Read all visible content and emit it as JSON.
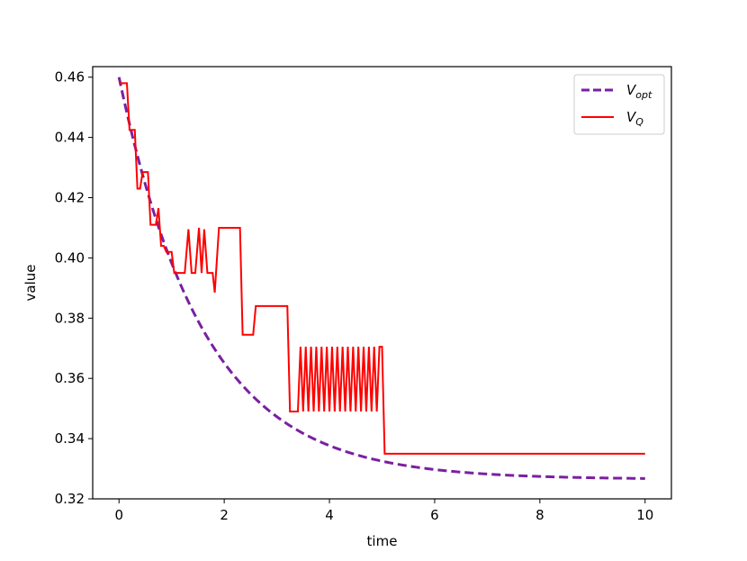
{
  "chart_data": {
    "type": "line",
    "xlabel": "time",
    "ylabel": "value",
    "xlim": [
      -0.5,
      10.5
    ],
    "ylim": [
      0.32,
      0.4635
    ],
    "x_ticks": [
      {
        "value": 0,
        "label": "0"
      },
      {
        "value": 2,
        "label": "2"
      },
      {
        "value": 4,
        "label": "4"
      },
      {
        "value": 6,
        "label": "6"
      },
      {
        "value": 8,
        "label": "8"
      },
      {
        "value": 10,
        "label": "10"
      }
    ],
    "y_ticks": [
      {
        "value": 0.32,
        "label": "0.32"
      },
      {
        "value": 0.34,
        "label": "0.34"
      },
      {
        "value": 0.36,
        "label": "0.36"
      },
      {
        "value": 0.38,
        "label": "0.38"
      },
      {
        "value": 0.4,
        "label": "0.40"
      },
      {
        "value": 0.42,
        "label": "0.42"
      },
      {
        "value": 0.44,
        "label": "0.44"
      },
      {
        "value": 0.46,
        "label": "0.46"
      }
    ],
    "grid": false,
    "legend_position": "top-right",
    "series": [
      {
        "name_main": "V",
        "name_sub": "opt",
        "color": "#7b1fa2",
        "style": "dashed",
        "exp_decay": {
          "start": 0.46,
          "asymptote": 0.3265,
          "rate": 0.62,
          "x_start": 0,
          "x_end": 10
        }
      },
      {
        "name_main": "V",
        "name_sub": "Q",
        "color": "#ff0000",
        "style": "solid",
        "points": [
          [
            0.0,
            0.458
          ],
          [
            0.15,
            0.458
          ],
          [
            0.2,
            0.4425
          ],
          [
            0.3,
            0.4425
          ],
          [
            0.35,
            0.423
          ],
          [
            0.4,
            0.423
          ],
          [
            0.45,
            0.4285
          ],
          [
            0.55,
            0.4285
          ],
          [
            0.6,
            0.411
          ],
          [
            0.7,
            0.411
          ],
          [
            0.75,
            0.4165
          ],
          [
            0.8,
            0.404
          ],
          [
            0.85,
            0.404
          ],
          [
            0.9,
            0.402
          ],
          [
            1.0,
            0.402
          ],
          [
            1.05,
            0.395
          ],
          [
            1.25,
            0.395
          ],
          [
            1.32,
            0.4095
          ],
          [
            1.38,
            0.395
          ],
          [
            1.45,
            0.395
          ],
          [
            1.52,
            0.41
          ],
          [
            1.57,
            0.395
          ],
          [
            1.62,
            0.4095
          ],
          [
            1.68,
            0.395
          ],
          [
            1.78,
            0.395
          ],
          [
            1.82,
            0.3885
          ],
          [
            1.9,
            0.41
          ],
          [
            2.3,
            0.41
          ],
          [
            2.35,
            0.3745
          ],
          [
            2.55,
            0.3745
          ],
          [
            2.6,
            0.384
          ],
          [
            3.2,
            0.384
          ],
          [
            3.25,
            0.349
          ],
          [
            3.4,
            0.349
          ],
          [
            3.45,
            0.3705
          ],
          [
            3.5,
            0.349
          ],
          [
            3.55,
            0.3705
          ],
          [
            3.6,
            0.349
          ],
          [
            3.65,
            0.3705
          ],
          [
            3.7,
            0.349
          ],
          [
            3.75,
            0.3705
          ],
          [
            3.8,
            0.349
          ],
          [
            3.85,
            0.3705
          ],
          [
            3.9,
            0.349
          ],
          [
            3.95,
            0.3705
          ],
          [
            4.0,
            0.349
          ],
          [
            4.05,
            0.3705
          ],
          [
            4.1,
            0.349
          ],
          [
            4.15,
            0.3705
          ],
          [
            4.2,
            0.349
          ],
          [
            4.25,
            0.3705
          ],
          [
            4.3,
            0.349
          ],
          [
            4.35,
            0.3705
          ],
          [
            4.4,
            0.349
          ],
          [
            4.45,
            0.3705
          ],
          [
            4.5,
            0.349
          ],
          [
            4.55,
            0.3705
          ],
          [
            4.6,
            0.349
          ],
          [
            4.65,
            0.3705
          ],
          [
            4.7,
            0.349
          ],
          [
            4.75,
            0.3705
          ],
          [
            4.8,
            0.349
          ],
          [
            4.85,
            0.3705
          ],
          [
            4.9,
            0.349
          ],
          [
            4.95,
            0.3705
          ],
          [
            5.0,
            0.3705
          ],
          [
            5.05,
            0.335
          ],
          [
            10.0,
            0.335
          ]
        ]
      }
    ]
  }
}
